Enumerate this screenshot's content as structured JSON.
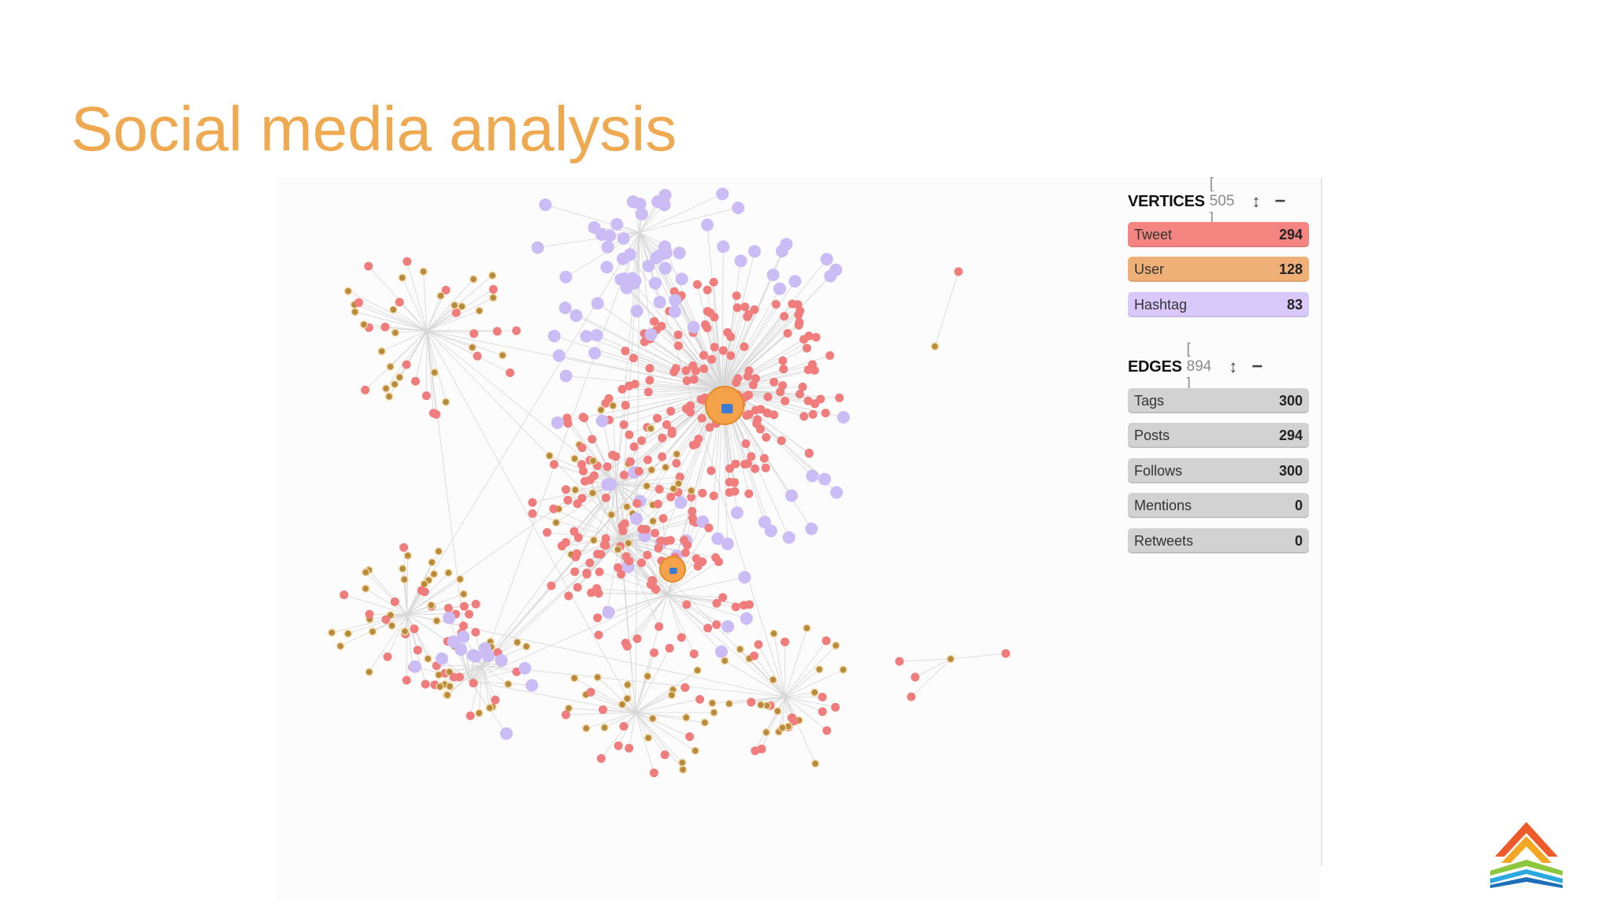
{
  "slide": {
    "title": "Social media analysis"
  },
  "vertices": {
    "name": "VERTICES",
    "count": "[ 505 ]",
    "resize_icon": "↕",
    "collapse_icon": "−",
    "items": [
      {
        "label": "Tweet",
        "value": "294",
        "color": "#f58581"
      },
      {
        "label": "User",
        "value": "128",
        "color": "#efb077"
      },
      {
        "label": "Hashtag",
        "value": "83",
        "color": "#d9c9fa"
      }
    ]
  },
  "edges": {
    "name": "EDGES",
    "count": "[ 894 ]",
    "resize_icon": "↕",
    "collapse_icon": "−",
    "items": [
      {
        "label": "Tags",
        "value": "300",
        "color": "#d2d2d2"
      },
      {
        "label": "Posts",
        "value": "294",
        "color": "#d2d2d2"
      },
      {
        "label": "Follows",
        "value": "300",
        "color": "#d2d2d2"
      },
      {
        "label": "Mentions",
        "value": "0",
        "color": "#d2d2d2"
      },
      {
        "label": "Retweets",
        "value": "0",
        "color": "#d2d2d2"
      }
    ]
  },
  "colors": {
    "title": "#efaa51",
    "tweet_node": "#f07c7c",
    "user_node": "#b88a3a",
    "hashtag_node": "#cbbcf6",
    "edge": "#d6d6d6",
    "hub": "#f5a24a"
  },
  "icons": [
    "resize-vertical-icon",
    "collapse-minus-icon",
    "company-logo-icon",
    "user-avatar-icon"
  ]
}
